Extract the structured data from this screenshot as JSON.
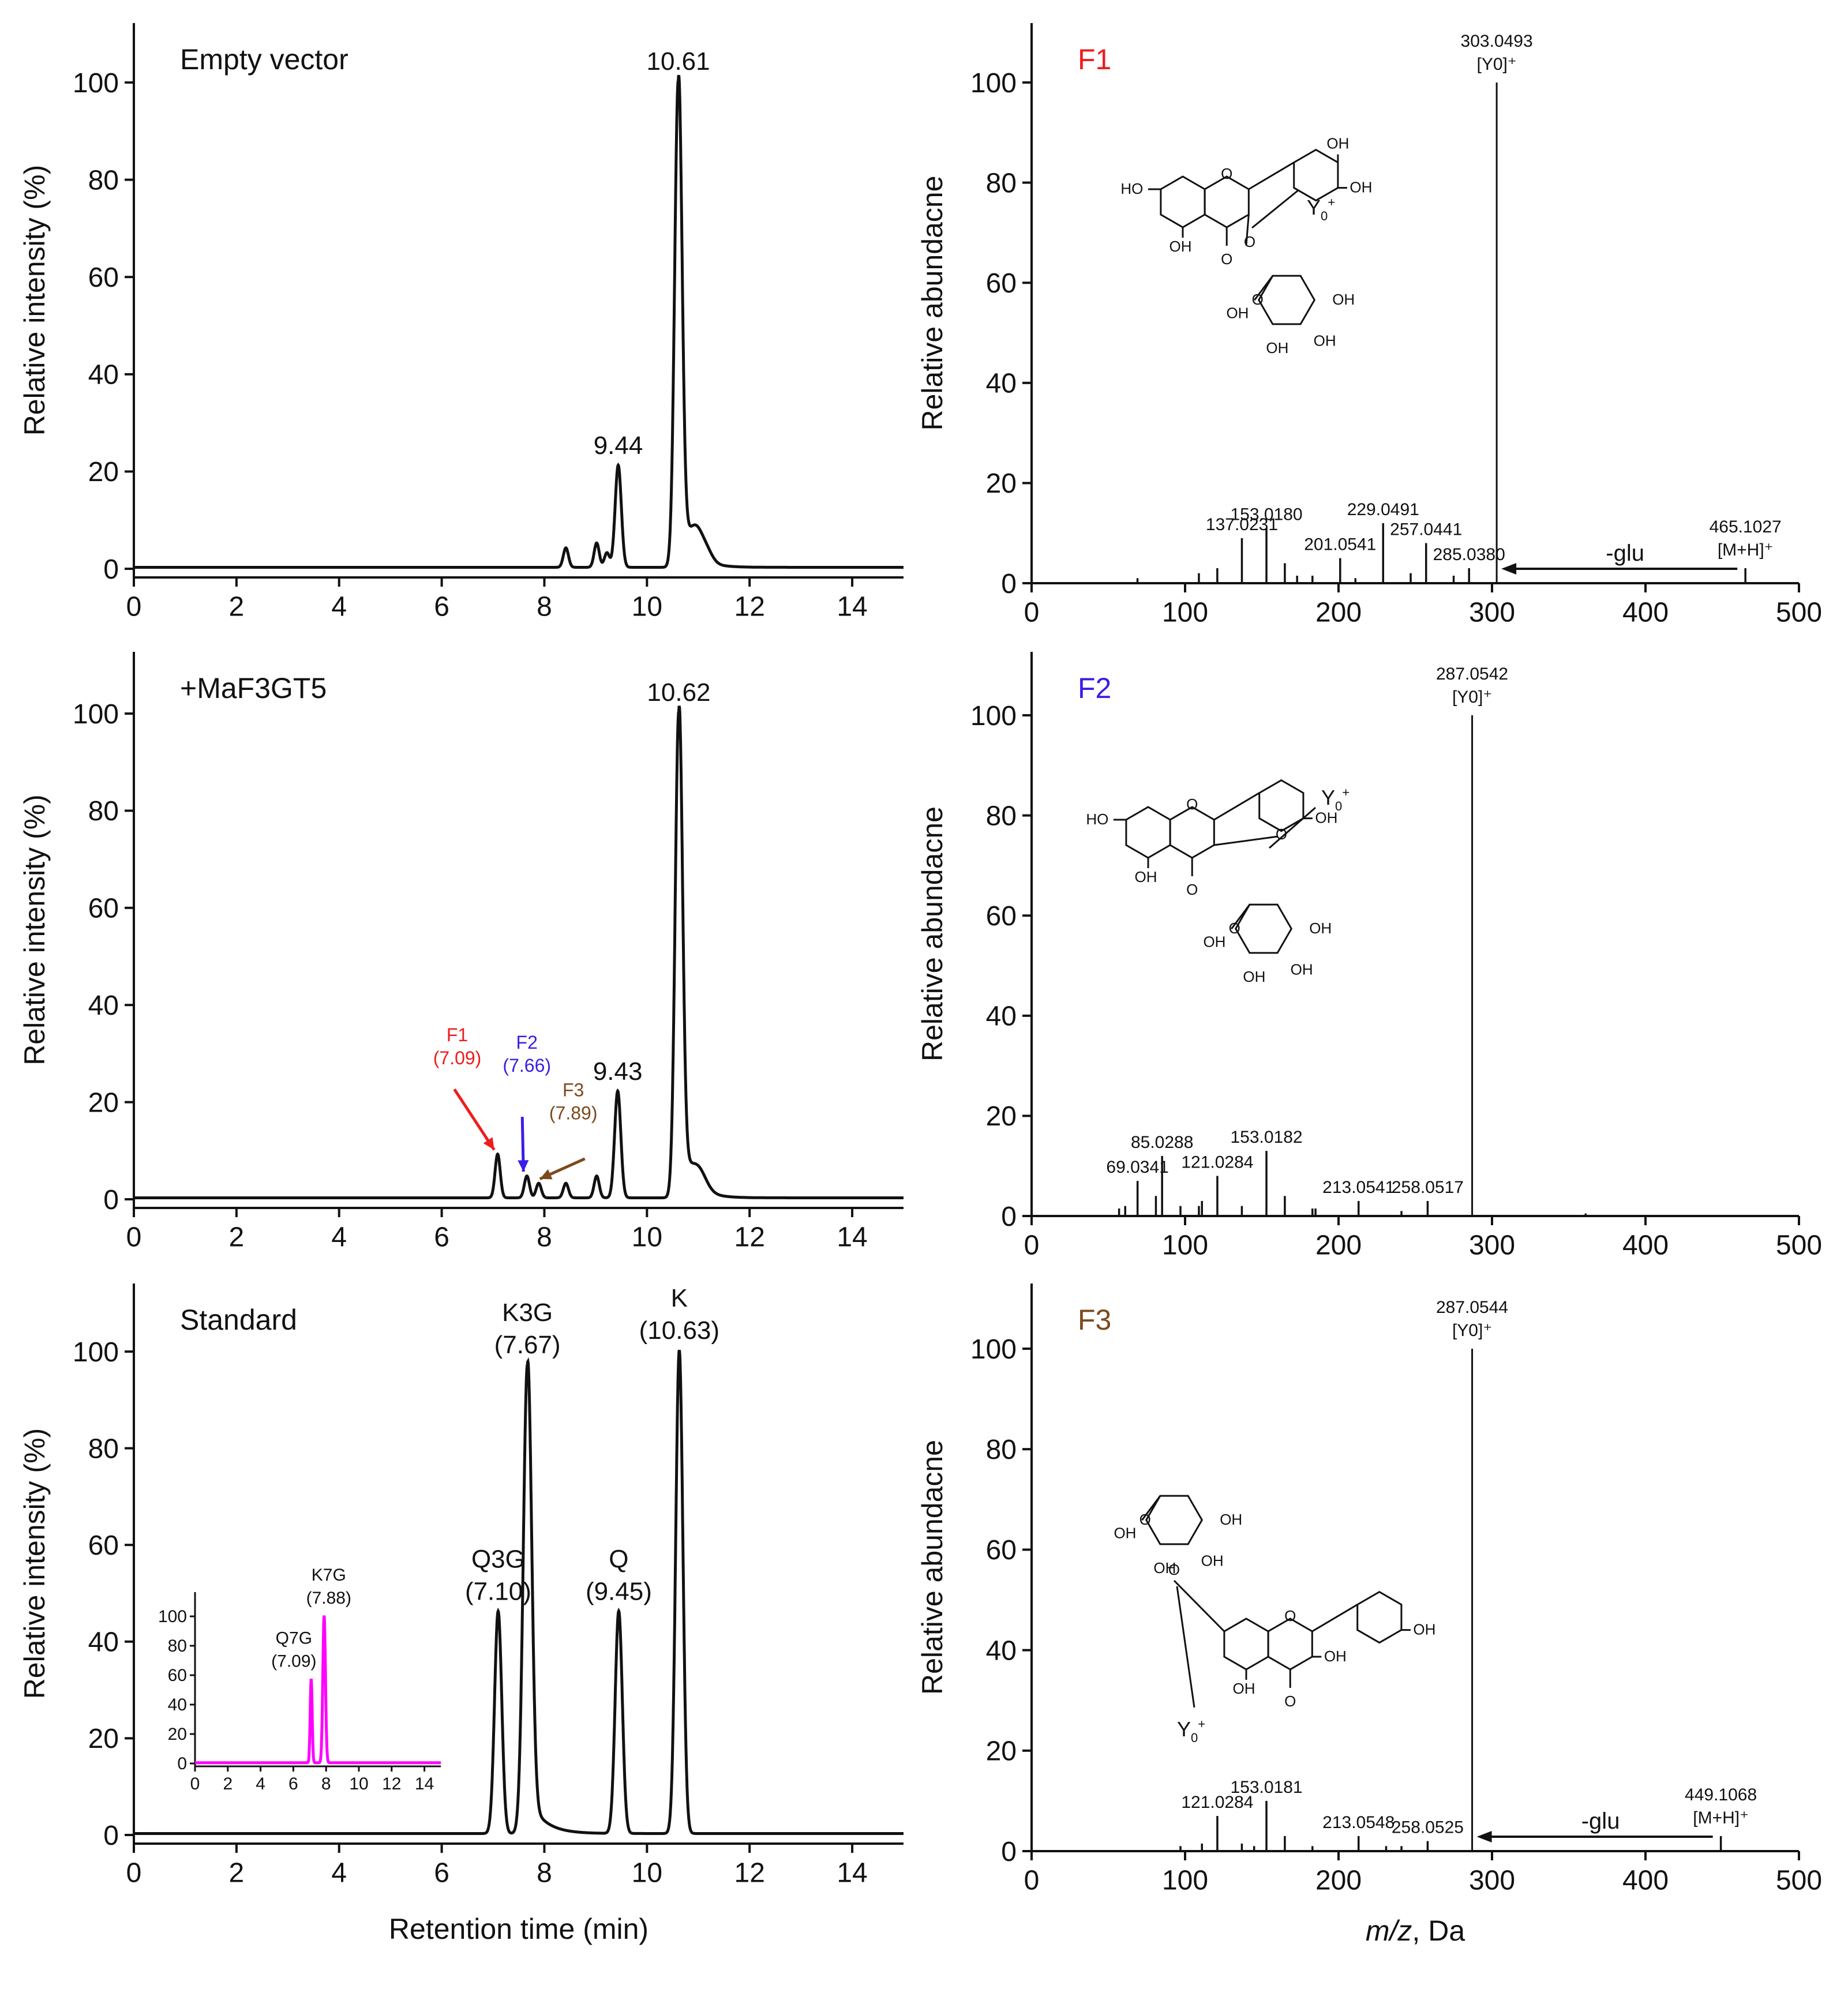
{
  "chart_data": [
    {
      "type": "line",
      "panel": "chromatogram",
      "label": "Empty vector",
      "xlim": [
        0,
        15
      ],
      "ylim": [
        0,
        110
      ],
      "x_ticks": [
        "0",
        "2",
        "4",
        "6",
        "8",
        "10",
        "12",
        "14"
      ],
      "y_ticks": [
        "0",
        "20",
        "40",
        "60",
        "80",
        "100"
      ],
      "ylabel": "Relative intensity (%)",
      "line_color": "#111111",
      "peaks": [
        {
          "rt": 8.42,
          "height": 4,
          "width": 0.05
        },
        {
          "rt": 9.02,
          "height": 5,
          "width": 0.05
        },
        {
          "rt": 9.22,
          "height": 3,
          "width": 0.05
        },
        {
          "rt": 9.44,
          "height": 21,
          "width": 0.06
        },
        {
          "rt": 10.61,
          "height": 100,
          "width": 0.07
        },
        {
          "rt": 10.95,
          "height": 5,
          "width": 0.12
        },
        {
          "rt": 11.15,
          "height": 2.5,
          "width": 0.12
        }
      ],
      "tail": {
        "rt": 10.61,
        "amp": 12,
        "decay": 0.25
      },
      "annotations": [
        {
          "text": "10.61",
          "x": 10.61,
          "y": 100
        },
        {
          "text": "9.44",
          "x": 9.44,
          "y": 21
        }
      ]
    },
    {
      "type": "line",
      "panel": "chromatogram",
      "label": "+MaF3GT5",
      "xlim": [
        0,
        15
      ],
      "ylim": [
        0,
        110
      ],
      "x_ticks": [
        "0",
        "2",
        "4",
        "6",
        "8",
        "10",
        "12",
        "14"
      ],
      "y_ticks": [
        "0",
        "20",
        "40",
        "60",
        "80",
        "100"
      ],
      "ylabel": "Relative intensity (%)",
      "line_color": "#111111",
      "peaks": [
        {
          "rt": 7.09,
          "height": 9,
          "width": 0.05
        },
        {
          "rt": 7.66,
          "height": 4.5,
          "width": 0.05
        },
        {
          "rt": 7.89,
          "height": 3,
          "width": 0.05
        },
        {
          "rt": 8.42,
          "height": 3,
          "width": 0.05
        },
        {
          "rt": 9.02,
          "height": 4.5,
          "width": 0.05
        },
        {
          "rt": 9.43,
          "height": 22,
          "width": 0.06
        },
        {
          "rt": 10.62,
          "height": 100,
          "width": 0.07
        },
        {
          "rt": 11.0,
          "height": 4,
          "width": 0.15
        }
      ],
      "tail": {
        "rt": 10.62,
        "amp": 12,
        "decay": 0.25
      },
      "annotations": [
        {
          "text": "10.62",
          "x": 10.62,
          "y": 100
        },
        {
          "text": "9.43",
          "x": 9.43,
          "y": 22
        }
      ],
      "arrow_labels": [
        {
          "name": "F1",
          "rt": "(7.09)",
          "color": "#ee1c1c",
          "x": 7.09,
          "y": 9
        },
        {
          "name": "F2",
          "rt": "(7.66)",
          "color": "#3a1ee6",
          "x": 7.66,
          "y": 4.5
        },
        {
          "name": "F3",
          "rt": "(7.89)",
          "color": "#7b4a1e",
          "x": 7.89,
          "y": 3
        }
      ]
    },
    {
      "type": "line",
      "panel": "chromatogram",
      "label": "Standard",
      "xlim": [
        0,
        15
      ],
      "ylim": [
        0,
        110
      ],
      "x_ticks": [
        "0",
        "2",
        "4",
        "6",
        "8",
        "10",
        "12",
        "14"
      ],
      "y_ticks": [
        "0",
        "20",
        "40",
        "60",
        "80",
        "100"
      ],
      "xlabel": "Retention time (min)",
      "ylabel": "Relative intensity (%)",
      "line_color": "#111111",
      "peaks": [
        {
          "rt": 7.1,
          "height": 46,
          "width": 0.07
        },
        {
          "rt": 7.67,
          "height": 97,
          "width": 0.08
        },
        {
          "rt": 9.45,
          "height": 46,
          "width": 0.07
        },
        {
          "rt": 10.63,
          "height": 100,
          "width": 0.07
        }
      ],
      "tail": {
        "rt": 7.67,
        "amp": 8,
        "decay": 0.3
      },
      "annotations": [
        {
          "text": "Q3G",
          "sub": "(7.10)",
          "x": 7.1,
          "y": 46
        },
        {
          "text": "K3G",
          "sub": "(7.67)",
          "x": 7.67,
          "y": 97
        },
        {
          "text": "Q",
          "sub": "(9.45)",
          "x": 9.45,
          "y": 46
        },
        {
          "text": "K",
          "sub": "(10.63)",
          "x": 10.63,
          "y": 100
        }
      ],
      "inset": {
        "xlim": [
          0,
          15
        ],
        "ylim": [
          0,
          110
        ],
        "x_ticks": [
          "0",
          "2",
          "4",
          "6",
          "8",
          "10",
          "12",
          "14"
        ],
        "y_ticks": [
          "0",
          "20",
          "40",
          "60",
          "80",
          "100"
        ],
        "line_color": "#ff00ff",
        "peaks": [
          {
            "rt": 7.09,
            "height": 57,
            "width": 0.06
          },
          {
            "rt": 7.88,
            "height": 100,
            "width": 0.08
          }
        ],
        "annotations": [
          {
            "text": "Q7G",
            "sub": "(7.09)",
            "x": 7.09,
            "y": 57
          },
          {
            "text": "K7G",
            "sub": "(7.88)",
            "x": 7.88,
            "y": 100
          }
        ]
      }
    },
    {
      "type": "bar",
      "panel": "ms",
      "label": "F1",
      "label_color": "#ee1c1c",
      "xlim": [
        0,
        500
      ],
      "ylim": [
        0,
        110
      ],
      "x_ticks": [
        "0",
        "100",
        "200",
        "300",
        "400",
        "500"
      ],
      "y_ticks": [
        "0",
        "20",
        "40",
        "60",
        "80",
        "100"
      ],
      "ylabel": "Relative abundacne",
      "peaks": [
        {
          "mz": 69,
          "int": 1
        },
        {
          "mz": 109,
          "int": 2
        },
        {
          "mz": 121,
          "int": 3
        },
        {
          "mz": 137.0231,
          "int": 9
        },
        {
          "mz": 153.018,
          "int": 11
        },
        {
          "mz": 165,
          "int": 4
        },
        {
          "mz": 173,
          "int": 1.5
        },
        {
          "mz": 183,
          "int": 1.5
        },
        {
          "mz": 201.0541,
          "int": 5
        },
        {
          "mz": 211,
          "int": 1
        },
        {
          "mz": 229.0491,
          "int": 12
        },
        {
          "mz": 247,
          "int": 2
        },
        {
          "mz": 257.0441,
          "int": 8
        },
        {
          "mz": 275,
          "int": 1.5
        },
        {
          "mz": 285.038,
          "int": 3
        },
        {
          "mz": 303.0493,
          "int": 100
        },
        {
          "mz": 465.1027,
          "int": 3
        }
      ],
      "labels": [
        {
          "text": "303.0493",
          "line2": "[Y0]⁺",
          "mz": 303.0493,
          "int": 100
        },
        {
          "text": "153.0180",
          "mz": 153.018,
          "int": 11
        },
        {
          "text": "229.0491",
          "mz": 229.0491,
          "int": 12
        },
        {
          "text": "137.0231",
          "mz": 137.0231,
          "int": 9
        },
        {
          "text": "201.0541",
          "mz": 201.0541,
          "int": 5
        },
        {
          "text": "257.0441",
          "mz": 257.0441,
          "int": 8
        },
        {
          "text": "285.0380",
          "mz": 285.038,
          "int": 3
        },
        {
          "text": "465.1027",
          "line2": "[M+H]⁺",
          "mz": 465.1027,
          "int": 3
        }
      ],
      "loss": {
        "text": "-glu",
        "from": 465.1027,
        "to": 303.0493
      }
    },
    {
      "type": "bar",
      "panel": "ms",
      "label": "F2",
      "label_color": "#3a1ee6",
      "xlim": [
        0,
        500
      ],
      "ylim": [
        0,
        110
      ],
      "x_ticks": [
        "0",
        "100",
        "200",
        "300",
        "400",
        "500"
      ],
      "y_ticks": [
        "0",
        "20",
        "40",
        "60",
        "80",
        "100"
      ],
      "ylabel": "Relative abundacne",
      "peaks": [
        {
          "mz": 57,
          "int": 1.5
        },
        {
          "mz": 61,
          "int": 2
        },
        {
          "mz": 69.0341,
          "int": 7
        },
        {
          "mz": 81,
          "int": 4
        },
        {
          "mz": 85.0288,
          "int": 12
        },
        {
          "mz": 97,
          "int": 2
        },
        {
          "mz": 109,
          "int": 2
        },
        {
          "mz": 111,
          "int": 3
        },
        {
          "mz": 121.0284,
          "int": 8
        },
        {
          "mz": 137,
          "int": 2
        },
        {
          "mz": 153.0182,
          "int": 13
        },
        {
          "mz": 165,
          "int": 4
        },
        {
          "mz": 183,
          "int": 1.5
        },
        {
          "mz": 185,
          "int": 1.5
        },
        {
          "mz": 213.0541,
          "int": 3
        },
        {
          "mz": 241,
          "int": 1
        },
        {
          "mz": 258.0517,
          "int": 3
        },
        {
          "mz": 287.0542,
          "int": 100
        },
        {
          "mz": 361,
          "int": 0.5
        }
      ],
      "labels": [
        {
          "text": "287.0542",
          "line2": "[Y0]⁺",
          "mz": 287.0542,
          "int": 100
        },
        {
          "text": "85.0288",
          "mz": 85.0288,
          "int": 12
        },
        {
          "text": "153.0182",
          "mz": 153.0182,
          "int": 13
        },
        {
          "text": "69.0341",
          "mz": 69.0341,
          "int": 7
        },
        {
          "text": "121.0284",
          "mz": 121.0284,
          "int": 8
        },
        {
          "text": "213.0541",
          "mz": 213.0541,
          "int": 3
        },
        {
          "text": "258.0517",
          "mz": 258.0517,
          "int": 3
        }
      ]
    },
    {
      "type": "bar",
      "panel": "ms",
      "label": "F3",
      "label_color": "#7b4a1e",
      "xlim": [
        0,
        500
      ],
      "ylim": [
        0,
        110
      ],
      "x_ticks": [
        "0",
        "100",
        "200",
        "300",
        "400",
        "500"
      ],
      "y_ticks": [
        "0",
        "20",
        "40",
        "60",
        "80",
        "100"
      ],
      "xlabel": "m/z, Da",
      "ylabel": "Relative abundacne",
      "peaks": [
        {
          "mz": 97,
          "int": 1
        },
        {
          "mz": 111,
          "int": 1.5
        },
        {
          "mz": 121.0284,
          "int": 7
        },
        {
          "mz": 137,
          "int": 1.5
        },
        {
          "mz": 145,
          "int": 1
        },
        {
          "mz": 153.0181,
          "int": 10
        },
        {
          "mz": 165,
          "int": 3
        },
        {
          "mz": 183,
          "int": 1
        },
        {
          "mz": 213.0548,
          "int": 3
        },
        {
          "mz": 231,
          "int": 1
        },
        {
          "mz": 241,
          "int": 1
        },
        {
          "mz": 258.0525,
          "int": 2
        },
        {
          "mz": 287.0544,
          "int": 100
        },
        {
          "mz": 449.1068,
          "int": 3
        }
      ],
      "labels": [
        {
          "text": "287.0544",
          "line2": "[Y0]⁺",
          "mz": 287.0544,
          "int": 100
        },
        {
          "text": "153.0181",
          "mz": 153.0181,
          "int": 10
        },
        {
          "text": "121.0284",
          "mz": 121.0284,
          "int": 7
        },
        {
          "text": "213.0548",
          "mz": 213.0548,
          "int": 3
        },
        {
          "text": "258.0525",
          "mz": 258.0525,
          "int": 2
        },
        {
          "text": "449.1068",
          "line2": "[M+H]⁺",
          "mz": 449.1068,
          "int": 3
        }
      ],
      "loss": {
        "text": "-glu",
        "from": 449.1068,
        "to": 287.0544
      }
    }
  ],
  "structure_text": {
    "oh": "OH",
    "ho": "HO",
    "o": "O",
    "y0": "Y",
    "y0_sub": "0",
    "y0_sup": "+"
  }
}
